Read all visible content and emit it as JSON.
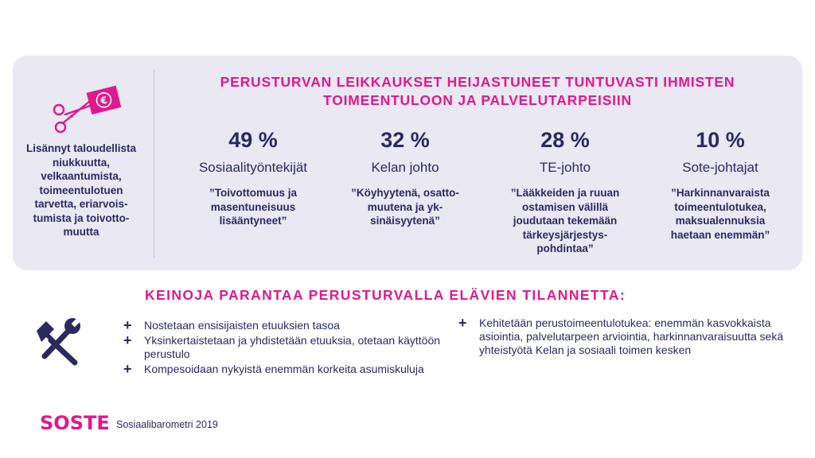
{
  "panel": {
    "title": "PERUSTURVAN LEIKKAUKSET HEIJASTUNEET TUNTUVASTI IHMISTEN TOIMEENTULOON JA PALVELUTARPEISIIN",
    "left_text": "Lisännyt taloudellista niukkuutta, velkaantumista, toimeentulotuen tarvetta, eriarvois-tumista ja toivotto-muutta",
    "currency_symbol": "€",
    "stats": [
      {
        "percent": "49 %",
        "role": "Sosiaalityöntekijät",
        "quote": "”Toivottomuus ja masentuneisuus lisääntyneet”"
      },
      {
        "percent": "32 %",
        "role": "Kelan johto",
        "quote": "”Köyhyytenä, osatto-muutena ja yk-sinäisyytenä”"
      },
      {
        "percent": "28 %",
        "role": "TE-johto",
        "quote": "”Lääkkeiden ja ruuan ostamisen välillä joudutaan tekemään tärkeysjärjestys-pohdintaa”"
      },
      {
        "percent": "10 %",
        "role": "Sote-johtajat",
        "quote": "”Harkinnanvaraista toimeentulotukea, maksualennuksia haetaan enemmän”"
      }
    ]
  },
  "measures": {
    "title": "KEINOJA PARANTAA PERUSTURVALLA ELÄVIEN TILANNETTA:",
    "bullet": "+",
    "left_items": [
      "Nostetaan ensisijaisten etuuksien tasoa",
      "Yksinkertaistetaan ja yhdistetään etuuksia, otetaan käyttöön perustulo",
      "Kompesoidaan nykyistä enemmän korkeita asumiskuluja"
    ],
    "right_items": [
      "Kehitetään perustoimeentulotukea: enemmän kasvokkaista asiointia, palvelutarpeen arviointia, harkinnanvaraisuutta sekä yhteistyötä Kelan ja sosiaali toimen kesken"
    ]
  },
  "footer": {
    "logo": "SOSTE",
    "label": "Sosiaalibarometri 2019"
  },
  "colors": {
    "accent": "#e0198c",
    "navy": "#2b2a5e",
    "panel_bg": "#e9e8f3"
  },
  "icons": {
    "scissors": "scissors-cutting-money-icon",
    "tools": "hammer-wrench-icon"
  }
}
